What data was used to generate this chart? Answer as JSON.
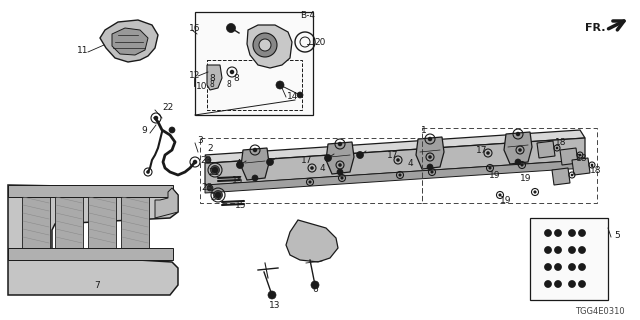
{
  "bg_color": "#ffffff",
  "line_color": "#1a1a1a",
  "diagram_code": "TGG4E0310",
  "fig_width": 6.4,
  "fig_height": 3.2,
  "dpi": 100
}
